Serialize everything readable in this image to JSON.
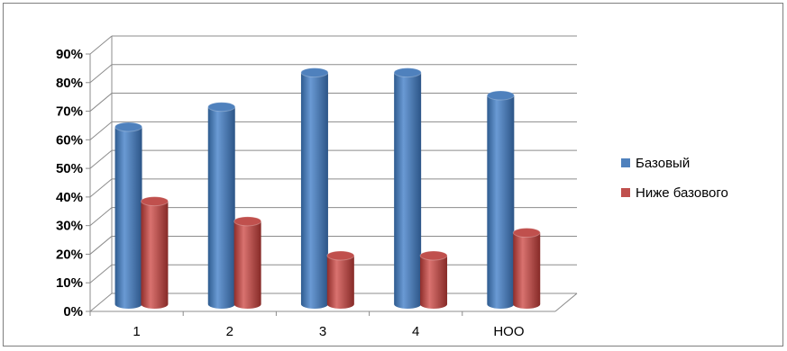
{
  "chart_data": {
    "type": "bar",
    "categories": [
      "1",
      "2",
      "3",
      "4",
      "НОО"
    ],
    "series": [
      {
        "name": "Базовый",
        "values": [
          62,
          69,
          81,
          81,
          73
        ],
        "color": "#4f81bd"
      },
      {
        "name": "Ниже базового",
        "values": [
          36,
          29,
          17,
          17,
          25
        ],
        "color": "#c0504d"
      }
    ],
    "y_ticks": [
      "0%",
      "10%",
      "20%",
      "30%",
      "40%",
      "50%",
      "60%",
      "70%",
      "80%",
      "90%"
    ],
    "ylim": [
      0,
      90
    ],
    "grid": true,
    "legend_position": "right",
    "style": "3d-cylinder"
  }
}
